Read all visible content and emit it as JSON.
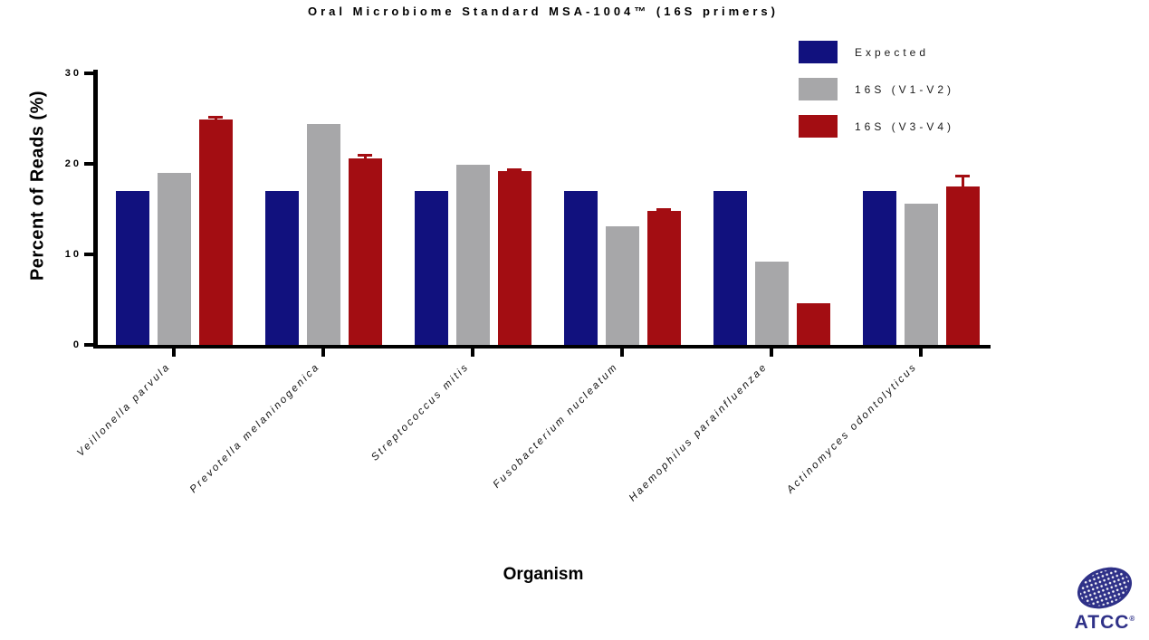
{
  "chart_data": {
    "type": "bar",
    "title": "Oral Microbiome Standard MSA-1004™  (16S primers)",
    "xlabel": "Organism",
    "ylabel": "Percent of Reads (%)",
    "ylim": [
      0,
      30
    ],
    "yticks": [
      0,
      10,
      20,
      30
    ],
    "grid": false,
    "legend_position": "top-right",
    "categories": [
      "Veillonella parvula",
      "Prevotella melaninogenica",
      "Streptococcus mitis",
      "Fusobacterium nucleatum",
      "Haemophilus parainfluenzae",
      "Actinomyces odontolyticus"
    ],
    "series": [
      {
        "name": "Expected",
        "color": "#11117e",
        "values": [
          17.0,
          17.0,
          17.0,
          17.0,
          17.0,
          17.0
        ],
        "errors": [
          0,
          0,
          0,
          0,
          0,
          0
        ]
      },
      {
        "name": "16S (V1-V2)",
        "color": "#a7a7a9",
        "values": [
          19.0,
          24.4,
          19.9,
          13.1,
          9.2,
          15.6
        ],
        "errors": [
          0,
          0,
          0,
          0,
          0,
          0
        ]
      },
      {
        "name": "16S (V3-V4)",
        "color": "#a30d12",
        "values": [
          24.9,
          20.6,
          19.2,
          14.8,
          4.6,
          17.5
        ],
        "errors": [
          0.3,
          0.4,
          0.25,
          0.2,
          0,
          1.2
        ]
      }
    ]
  },
  "footer": {
    "logo_text": "ATCC",
    "logo_reg": "®"
  }
}
